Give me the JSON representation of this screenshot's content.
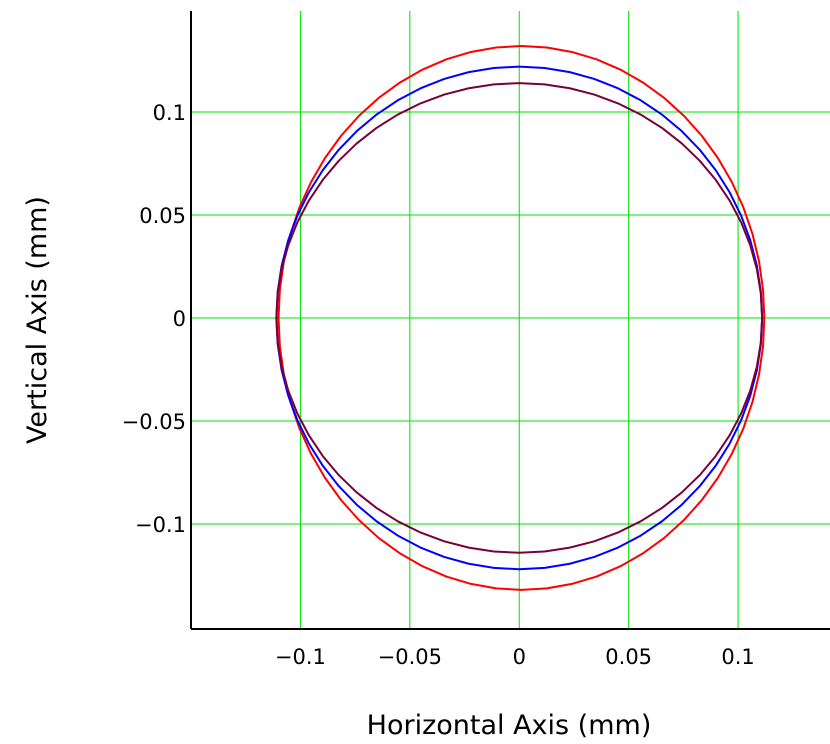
{
  "chart_data": {
    "type": "line",
    "xlabel": "Horizontal Axis (mm)",
    "ylabel": "Vertical Axis (mm)",
    "xlim": [
      -0.15,
      0.142
    ],
    "ylim": [
      -0.151,
      0.149
    ],
    "grid": true,
    "x_ticks": [
      {
        "value": -0.1,
        "label": "−0.1"
      },
      {
        "value": -0.05,
        "label": "−0.05"
      },
      {
        "value": 0,
        "label": "0"
      },
      {
        "value": 0.05,
        "label": "0.05"
      },
      {
        "value": 0.1,
        "label": "0.1"
      }
    ],
    "y_ticks": [
      {
        "value": 0.1,
        "label": "0.1"
      },
      {
        "value": 0.05,
        "label": "0.05"
      },
      {
        "value": 0,
        "label": "0"
      },
      {
        "value": -0.05,
        "label": "−0.05"
      },
      {
        "value": -0.1,
        "label": "−0.1"
      }
    ],
    "series": [
      {
        "color": "#ff0000",
        "rx": 0.111,
        "ry": 0.132,
        "cx": 0.001,
        "cy": 0.0
      },
      {
        "color": "#0000ff",
        "rx": 0.111,
        "ry": 0.122,
        "cx": 0.0,
        "cy": 0.0
      },
      {
        "color": "#7a0038",
        "rx": 0.111,
        "ry": 0.114,
        "cx": 0.0,
        "cy": 0.0
      }
    ]
  },
  "colors": {
    "grid": "#00e000",
    "axis": "#000000",
    "background": "#ffffff"
  }
}
